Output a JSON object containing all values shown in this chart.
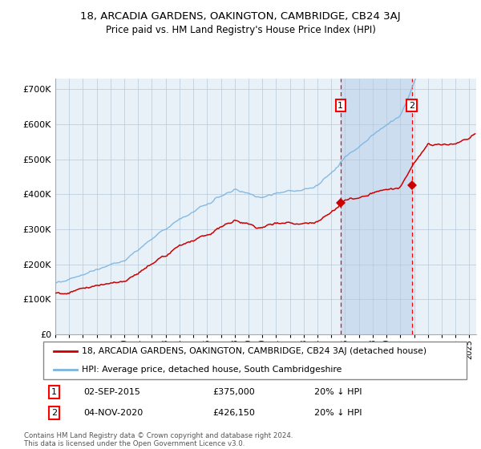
{
  "title": "18, ARCADIA GARDENS, OAKINGTON, CAMBRIDGE, CB24 3AJ",
  "subtitle": "Price paid vs. HM Land Registry's House Price Index (HPI)",
  "legend_line1": "18, ARCADIA GARDENS, OAKINGTON, CAMBRIDGE, CB24 3AJ (detached house)",
  "legend_line2": "HPI: Average price, detached house, South Cambridgeshire",
  "annotation1_date": "02-SEP-2015",
  "annotation1_price": "£375,000",
  "annotation1_hpi": "20% ↓ HPI",
  "annotation2_date": "04-NOV-2020",
  "annotation2_price": "£426,150",
  "annotation2_hpi": "20% ↓ HPI",
  "sale1_year": 2015.67,
  "sale1_value": 375000,
  "sale2_year": 2020.84,
  "sale2_value": 426150,
  "hpi_color": "#7ab4e0",
  "price_color": "#cc0000",
  "bg_color": "#e8f0f8",
  "shaded_color": "#ccddf0",
  "copyright": "Contains HM Land Registry data © Crown copyright and database right 2024.\nThis data is licensed under the Open Government Licence v3.0.",
  "ylim": [
    0,
    730000
  ],
  "xlim_start": 1995,
  "xlim_end": 2025.5,
  "yticks": [
    0,
    100000,
    200000,
    300000,
    400000,
    500000,
    600000,
    700000
  ],
  "ytick_labels": [
    "£0",
    "£100K",
    "£200K",
    "£300K",
    "£400K",
    "£500K",
    "£600K",
    "£700K"
  ]
}
